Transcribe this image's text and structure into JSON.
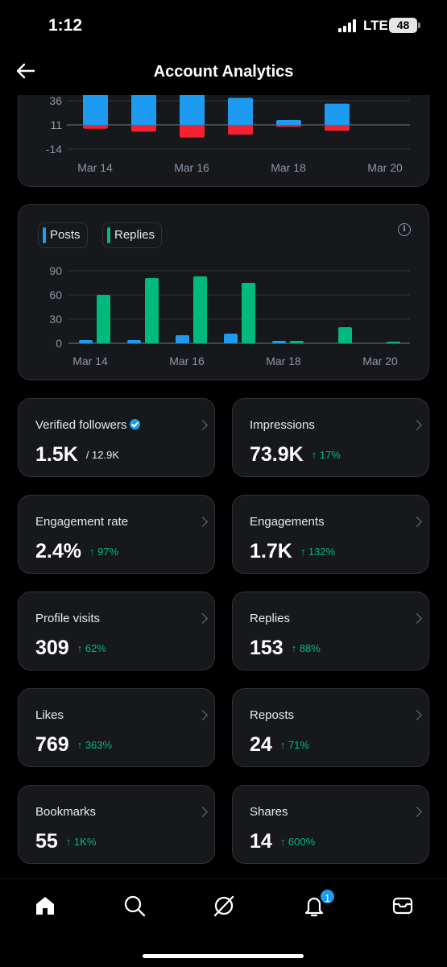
{
  "status": {
    "time": "1:12",
    "network": "LTE",
    "battery": "48"
  },
  "header": {
    "title": "Account Analytics"
  },
  "chart_data": [
    {
      "type": "bar",
      "categories": [
        "Mar 14",
        "Mar 15",
        "Mar 16",
        "Mar 17",
        "Mar 18",
        "Mar 19"
      ],
      "x_tick_labels": [
        "Mar 14",
        "Mar 16",
        "Mar 18",
        "Mar 20"
      ],
      "y_tick_labels": [
        "36",
        "11",
        "-14"
      ],
      "ylim": [
        -14,
        36
      ],
      "series": [
        {
          "color": "#1d9bf0",
          "values": [
            36,
            36,
            36,
            28,
            5,
            22
          ]
        },
        {
          "color": "#f4212e",
          "values": [
            -4,
            -7,
            -13,
            -10,
            -2,
            -6
          ]
        }
      ]
    },
    {
      "type": "bar",
      "categories": [
        "Mar 14",
        "Mar 15",
        "Mar 16",
        "Mar 17",
        "Mar 18",
        "Mar 19",
        "Mar 20"
      ],
      "x_tick_labels": [
        "Mar 14",
        "Mar 16",
        "Mar 18",
        "Mar 20"
      ],
      "y_tick_labels": [
        "90",
        "60",
        "30",
        "0"
      ],
      "ylim": [
        0,
        90
      ],
      "legend": [
        "Posts",
        "Replies"
      ],
      "series": [
        {
          "name": "Posts",
          "color": "#1d9bf0",
          "values": [
            4,
            4,
            10,
            12,
            3,
            0,
            0
          ]
        },
        {
          "name": "Replies",
          "color": "#00ba7c",
          "values": [
            60,
            81,
            83,
            75,
            3,
            20,
            2
          ]
        }
      ]
    }
  ],
  "metrics": [
    {
      "label": "Verified followers",
      "value": "1.5K",
      "sub": "/ 12.9K"
    },
    {
      "label": "Impressions",
      "value": "73.9K",
      "change": "↑ 17%"
    },
    {
      "label": "Engagement rate",
      "value": "2.4%",
      "change": "↑ 97%"
    },
    {
      "label": "Engagements",
      "value": "1.7K",
      "change": "↑ 132%"
    },
    {
      "label": "Profile visits",
      "value": "309",
      "change": "↑ 62%"
    },
    {
      "label": "Replies",
      "value": "153",
      "change": "↑ 88%"
    },
    {
      "label": "Likes",
      "value": "769",
      "change": "↑ 363%"
    },
    {
      "label": "Reposts",
      "value": "24",
      "change": "↑ 71%"
    },
    {
      "label": "Bookmarks",
      "value": "55",
      "change": "↑ 1K%"
    },
    {
      "label": "Shares",
      "value": "14",
      "change": "↑ 600%"
    }
  ],
  "tabbar": {
    "icons": [
      "home-icon",
      "search-icon",
      "grok-icon",
      "notifications-icon",
      "messages-icon"
    ],
    "notification_badge": "1"
  }
}
